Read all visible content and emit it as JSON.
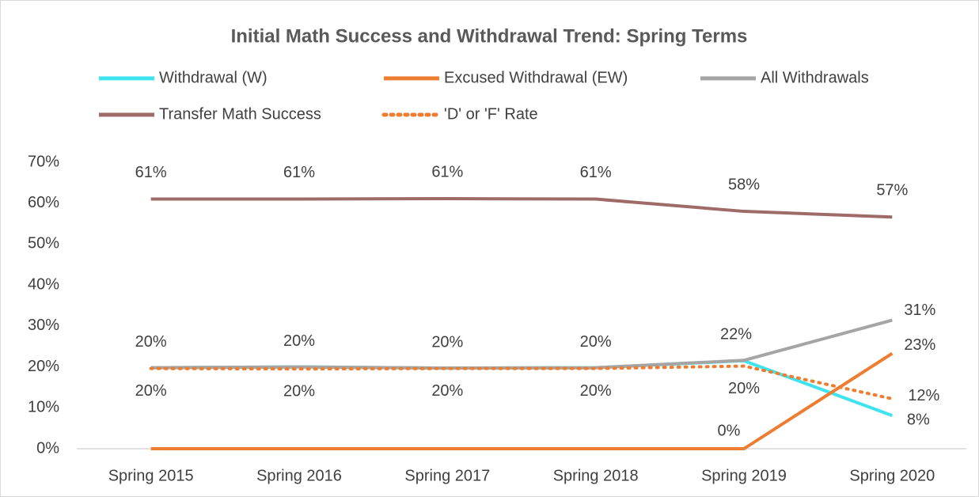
{
  "chart_data": {
    "type": "line",
    "title": "Initial Math Success and Withdrawal Trend: Spring Terms",
    "categories": [
      "Spring 2015",
      "Spring 2016",
      "Spring 2017",
      "Spring 2018",
      "Spring 2019",
      "Spring 2020"
    ],
    "series": [
      {
        "name": "Withdrawal (W)",
        "color": "#3fe3ef",
        "style": "solid",
        "values": [
          19.8,
          20,
          19.7,
          19.8,
          21.5,
          8.1
        ],
        "value_labels": [
          null,
          null,
          null,
          null,
          null,
          "8%"
        ]
      },
      {
        "name": "Excused Withdrawal (EW)",
        "color": "#ed7d31",
        "style": "solid",
        "values": [
          0,
          0,
          0,
          0,
          0,
          23.3
        ],
        "value_labels": [
          null,
          null,
          null,
          null,
          "0%",
          "23%"
        ]
      },
      {
        "name": "All Withdrawals",
        "color": "#a5a5a5",
        "style": "solid",
        "values": [
          19.8,
          20,
          19.7,
          19.8,
          21.6,
          31.4
        ],
        "value_labels": [
          "20%",
          "20%",
          "20%",
          "20%",
          "22%",
          "31%"
        ]
      },
      {
        "name": "Transfer Math Success",
        "color": "#9e6b68",
        "style": "solid",
        "values": [
          61,
          61,
          61.1,
          61,
          58,
          56.6
        ],
        "value_labels": [
          "61%",
          "61%",
          "61%",
          "61%",
          "58%",
          "57%"
        ]
      },
      {
        "name": "'D' or 'F' Rate",
        "color": "#ed7d31",
        "style": "dotted",
        "values": [
          19.6,
          19.5,
          19.6,
          19.6,
          20.2,
          12.2
        ],
        "value_labels": [
          "20%",
          "20%",
          "20%",
          "20%",
          "20%",
          "12%"
        ]
      }
    ],
    "ylim": [
      0,
      70
    ],
    "yticks": [
      {
        "value": 0,
        "label": "0%"
      },
      {
        "value": 10,
        "label": "10%"
      },
      {
        "value": 20,
        "label": "20%"
      },
      {
        "value": 30,
        "label": "30%"
      },
      {
        "value": 40,
        "label": "40%"
      },
      {
        "value": 50,
        "label": "50%"
      },
      {
        "value": 60,
        "label": "60%"
      },
      {
        "value": 70,
        "label": "70%"
      }
    ],
    "grid": false,
    "legend": "top"
  }
}
